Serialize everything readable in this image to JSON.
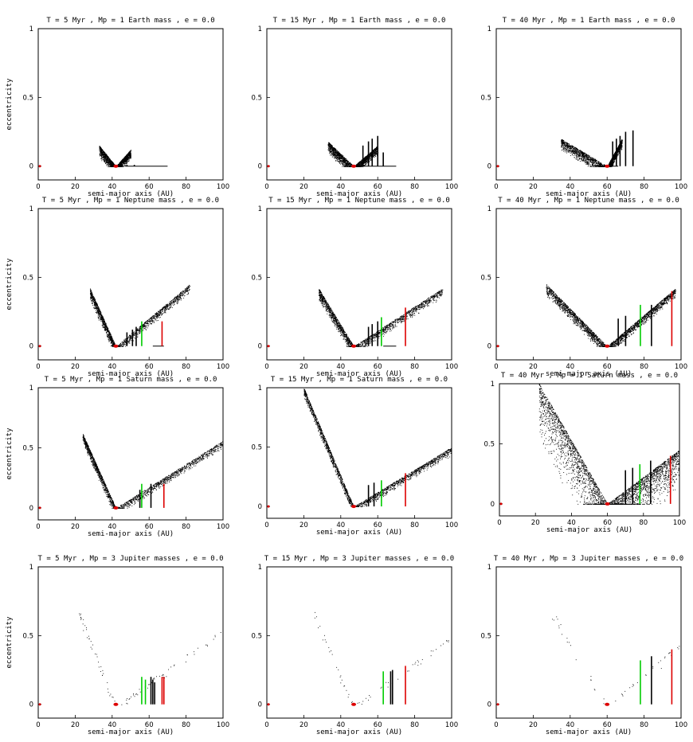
{
  "colors": {
    "particles": "#000000",
    "res1": "#00cc00",
    "res2": "#000000",
    "res3": "#dd0000",
    "planet": "#dd0000"
  },
  "chart_data": [
    {
      "type": "scatter",
      "title": "T = 5 Myr , Mp = 1 Earth mass , e = 0.0",
      "xlabel": "semi-major axis (AU)",
      "ylabel": "eccentricity",
      "xlim": [
        0,
        100
      ],
      "ylim": [
        -0.1,
        1
      ],
      "xticks": [
        0,
        20,
        40,
        60,
        80,
        100
      ],
      "yticks": [
        0,
        0.5,
        1
      ],
      "sim": {
        "a_p": 42,
        "arm_lo": 33,
        "arm_hi": 50,
        "emax_in": 0.15,
        "emax_out": 0.12,
        "range_in": [
          33,
          42
        ],
        "range_out": [
          42,
          50
        ],
        "flat": [
          47,
          70
        ],
        "cols": [
          [
            45,
            0.02
          ],
          [
            48,
            0.01
          ],
          [
            52,
            0.01
          ]
        ],
        "density": 0.9
      }
    },
    {
      "type": "scatter",
      "title": "T = 15 Myr , Mp = 1 Earth mass , e = 0.0",
      "xlabel": "semi-major axis (AU)",
      "ylabel": "eccentricity",
      "xlim": [
        0,
        100
      ],
      "ylim": [
        -0.1,
        1
      ],
      "xticks": [
        0,
        20,
        40,
        60,
        80,
        100
      ],
      "yticks": [
        0,
        0.5,
        1
      ],
      "sim": {
        "a_p": 47,
        "arm_lo": 33,
        "arm_hi": 60,
        "emax_in": 0.18,
        "emax_out": 0.15,
        "range_in": [
          33,
          47
        ],
        "range_out": [
          47,
          60
        ],
        "flat": [
          50,
          70
        ],
        "cols": [
          [
            52,
            0.15
          ],
          [
            55,
            0.18
          ],
          [
            57,
            0.2
          ],
          [
            60,
            0.22
          ],
          [
            63,
            0.1
          ]
        ],
        "density": 1.0
      }
    },
    {
      "type": "scatter",
      "title": "T = 40 Myr , Mp = 1 Earth mass , e = 0.0",
      "xlabel": "semi-major axis (AU)",
      "ylabel": "eccentricity",
      "xlim": [
        0,
        100
      ],
      "ylim": [
        -0.1,
        1
      ],
      "xticks": [
        0,
        20,
        40,
        60,
        80,
        100
      ],
      "yticks": [
        0,
        0.5,
        1
      ],
      "sim": {
        "a_p": 60,
        "arm_lo": 35,
        "arm_hi": 68,
        "emax_in": 0.2,
        "emax_out": 0.2,
        "range_in": [
          35,
          60
        ],
        "range_out": [
          60,
          68
        ],
        "flat": [
          62,
          66
        ],
        "cols": [
          [
            63,
            0.18
          ],
          [
            65,
            0.2
          ],
          [
            67,
            0.22
          ],
          [
            70,
            0.25
          ],
          [
            74,
            0.26
          ]
        ],
        "density": 1.2
      }
    },
    {
      "type": "scatter",
      "title": "T = 5 Myr , Mp = 1 Neptune mass , e = 0.0",
      "xlabel": "semi-major axis (AU)",
      "ylabel": "eccentricity",
      "xlim": [
        0,
        100
      ],
      "ylim": [
        -0.1,
        1
      ],
      "xticks": [
        0,
        20,
        40,
        60,
        80,
        100
      ],
      "yticks": [
        0,
        0.5,
        1
      ],
      "sim": {
        "a_p": 42,
        "arm_lo": 28,
        "arm_hi": 82,
        "emax_in": 0.42,
        "emax_out": 0.45,
        "range_in": [
          28,
          42
        ],
        "range_out": [
          42,
          82
        ],
        "flat": [
          62,
          68
        ],
        "cols": [
          [
            48,
            0.1
          ],
          [
            51,
            0.12
          ],
          [
            53,
            0.14
          ]
        ],
        "green": [
          [
            56,
            0.18
          ]
        ],
        "red": [
          [
            67,
            0.18
          ]
        ],
        "density": 1.0
      }
    },
    {
      "type": "scatter",
      "title": "T = 15 Myr , Mp = 1 Neptune mass , e = 0.0",
      "xlabel": "semi-major axis (AU)",
      "ylabel": "eccentricity",
      "xlim": [
        0,
        100
      ],
      "ylim": [
        -0.1,
        1
      ],
      "xticks": [
        0,
        20,
        40,
        60,
        80,
        100
      ],
      "yticks": [
        0,
        0.5,
        1
      ],
      "sim": {
        "a_p": 47,
        "arm_lo": 28,
        "arm_hi": 95,
        "emax_in": 0.42,
        "emax_out": 0.42,
        "range_in": [
          28,
          47
        ],
        "range_out": [
          47,
          95
        ],
        "flat": [
          63,
          70
        ],
        "cols": [
          [
            55,
            0.14
          ],
          [
            57,
            0.16
          ],
          [
            60,
            0.18
          ]
        ],
        "green": [
          [
            62,
            0.21
          ]
        ],
        "red": [
          [
            75,
            0.28
          ]
        ],
        "density": 1.1
      }
    },
    {
      "type": "scatter",
      "title": "T = 40 Myr , Mp = 1 Neptune mass , e = 0.0",
      "xlabel": "semi-major axis (AU)",
      "ylabel": "eccentricity",
      "xlim": [
        0,
        100
      ],
      "ylim": [
        -0.1,
        1
      ],
      "xticks": [
        0,
        20,
        40,
        60,
        80,
        100
      ],
      "yticks": [
        0,
        0.5,
        1
      ],
      "sim": {
        "a_p": 60,
        "arm_lo": 27,
        "arm_hi": 97,
        "emax_in": 0.45,
        "emax_out": 0.42,
        "range_in": [
          27,
          60
        ],
        "range_out": [
          60,
          97
        ],
        "flat": [],
        "cols": [
          [
            66,
            0.2
          ],
          [
            70,
            0.22
          ],
          [
            84,
            0.3
          ]
        ],
        "green": [
          [
            78,
            0.3
          ]
        ],
        "red": [
          [
            95,
            0.4
          ]
        ],
        "density": 1.4
      }
    },
    {
      "type": "scatter",
      "title": "T = 5 Myr , Mp = 1 Saturn mass , e = 0.0",
      "xlabel": "semi-major axis (AU)",
      "ylabel": "eccentricity",
      "xlim": [
        0,
        100
      ],
      "ylim": [
        -0.1,
        1
      ],
      "xticks": [
        0,
        20,
        40,
        60,
        80,
        100
      ],
      "yticks": [
        0,
        0.5,
        1
      ],
      "sim": {
        "a_p": 42,
        "arm_lo": 24,
        "arm_hi": 100,
        "emax_in": 0.62,
        "emax_out": 0.56,
        "range_in": [
          24,
          42
        ],
        "range_out": [
          42,
          100
        ],
        "flat": [],
        "cols": [
          [
            55,
            0.15
          ],
          [
            61,
            0.2
          ]
        ],
        "green": [
          [
            56,
            0.2
          ]
        ],
        "red": [
          [
            68,
            0.2
          ]
        ],
        "density": 1.1
      }
    },
    {
      "type": "scatter",
      "title": "T = 15 Myr , Mp = 1 Saturn mass , e = 0.0",
      "xlabel": "semi-major axis (AU)",
      "ylabel": "eccentricity",
      "xlim": [
        0,
        100
      ],
      "ylim": [
        -0.1,
        1
      ],
      "xticks": [
        0,
        20,
        40,
        60,
        80,
        100
      ],
      "yticks": [
        0,
        0.5,
        1
      ],
      "sim": {
        "a_p": 47,
        "arm_lo": 20,
        "arm_hi": 100,
        "emax_in": 1.0,
        "emax_out": 0.5,
        "range_in": [
          20,
          47
        ],
        "range_out": [
          47,
          100
        ],
        "flat": [],
        "cols": [
          [
            55,
            0.18
          ],
          [
            58,
            0.2
          ]
        ],
        "green": [
          [
            62,
            0.22
          ]
        ],
        "red": [
          [
            75,
            0.28
          ]
        ],
        "density": 1.2
      }
    },
    {
      "type": "scatter",
      "title": "T = 40 Myr , Mp = 1 Saturn mass , e = 0.0",
      "xlabel": "semi-major axis (AU)",
      "ylabel": "eccentricity",
      "xlim": [
        0,
        100
      ],
      "ylim": [
        -0.1,
        1
      ],
      "xticks": [
        0,
        20,
        40,
        60,
        80,
        100
      ],
      "yticks": [
        0,
        0.5,
        1
      ],
      "sim": {
        "a_p": 60,
        "arm_lo": 22,
        "arm_hi": 100,
        "emax_in": 1.0,
        "emax_out": 0.45,
        "range_in": [
          22,
          60
        ],
        "range_out": [
          60,
          100
        ],
        "flat": [],
        "cols": [
          [
            70,
            0.28
          ],
          [
            74,
            0.3
          ],
          [
            84,
            0.36
          ]
        ],
        "green": [
          [
            78,
            0.33
          ]
        ],
        "red": [
          [
            95,
            0.4
          ]
        ],
        "density": 1.8,
        "scatter": true
      }
    },
    {
      "type": "scatter",
      "title": "T = 5 Myr , Mp = 3 Jupiter masses , e = 0.0",
      "xlabel": "semi-major axis (AU)",
      "ylabel": "eccentricity",
      "xlim": [
        0,
        100
      ],
      "ylim": [
        -0.1,
        1
      ],
      "xticks": [
        0,
        20,
        40,
        60,
        80,
        100
      ],
      "yticks": [
        0,
        0.5,
        1
      ],
      "sim": {
        "a_p": 42,
        "arm_lo": 22,
        "arm_hi": 100,
        "emax_in": 0.7,
        "emax_out": 0.55,
        "range_in": [
          22,
          42
        ],
        "range_out": [
          42,
          100
        ],
        "flat": [],
        "cols": [
          [
            61,
            0.2
          ],
          [
            62,
            0.18
          ],
          [
            63,
            0.16
          ]
        ],
        "green": [
          [
            56,
            0.2
          ],
          [
            58,
            0.18
          ]
        ],
        "red": [
          [
            67,
            0.2
          ],
          [
            68,
            0.2
          ]
        ],
        "density": 0.3,
        "sparse": true
      }
    },
    {
      "type": "scatter",
      "title": "T = 15 Myr , Mp = 3 Jupiter masses , e = 0.0",
      "xlabel": "semi-major axis (AU)",
      "ylabel": "eccentricity",
      "xlim": [
        0,
        100
      ],
      "ylim": [
        -0.1,
        1
      ],
      "xticks": [
        0,
        20,
        40,
        60,
        80,
        100
      ],
      "yticks": [
        0,
        0.5,
        1
      ],
      "sim": {
        "a_p": 47,
        "arm_lo": 25,
        "arm_hi": 100,
        "emax_in": 0.7,
        "emax_out": 0.5,
        "range_in": [
          25,
          47
        ],
        "range_out": [
          47,
          100
        ],
        "flat": [],
        "cols": [
          [
            67,
            0.24
          ],
          [
            68,
            0.25
          ]
        ],
        "green": [
          [
            63,
            0.24
          ]
        ],
        "red": [
          [
            75,
            0.28
          ]
        ],
        "density": 0.2,
        "sparse": true
      }
    },
    {
      "type": "scatter",
      "title": "T = 40 Myr , Mp = 3 Jupiter masses , e = 0.0",
      "xlabel": "semi-major axis (AU)",
      "ylabel": "eccentricity",
      "xlim": [
        0,
        100
      ],
      "ylim": [
        -0.1,
        1
      ],
      "xticks": [
        0,
        20,
        40,
        60,
        80,
        100
      ],
      "yticks": [
        0,
        0.5,
        1
      ],
      "sim": {
        "a_p": 60,
        "arm_lo": 30,
        "arm_hi": 100,
        "emax_in": 0.7,
        "emax_out": 0.45,
        "range_in": [
          30,
          60
        ],
        "range_out": [
          60,
          100
        ],
        "flat": [],
        "cols": [
          [
            84,
            0.35
          ]
        ],
        "green": [
          [
            78,
            0.32
          ]
        ],
        "red": [
          [
            95,
            0.4
          ]
        ],
        "density": 0.15,
        "sparse": true
      }
    }
  ]
}
